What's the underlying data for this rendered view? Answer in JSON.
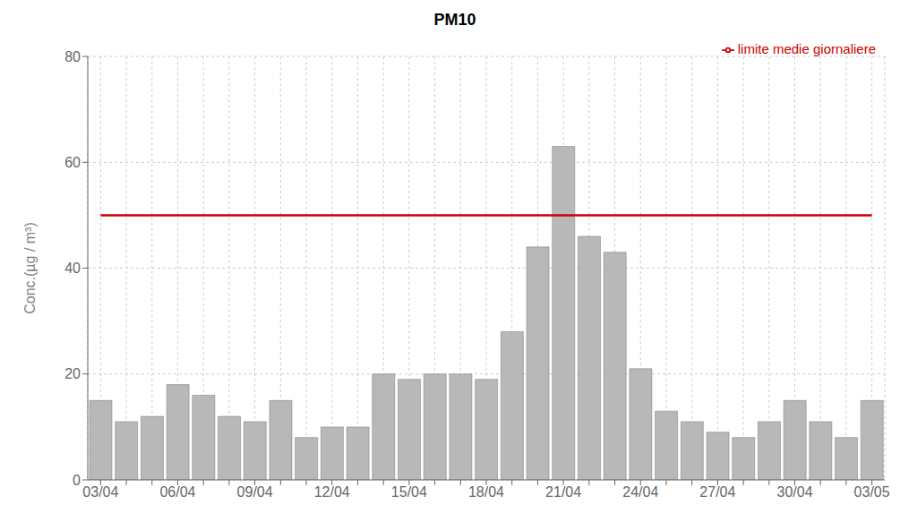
{
  "chart_data": {
    "type": "bar",
    "title": "PM10",
    "ylabel": "Conc.(µg / m³)",
    "categories": [
      "03/04",
      null,
      null,
      "06/04",
      null,
      null,
      "09/04",
      null,
      null,
      "12/04",
      null,
      null,
      "15/04",
      null,
      null,
      "18/04",
      null,
      null,
      "21/04",
      null,
      null,
      "24/04",
      null,
      null,
      "27/04",
      null,
      null,
      "30/04",
      null,
      null,
      "03/05"
    ],
    "series": [
      {
        "type": "bar",
        "color": "#b8b8b8",
        "values": [
          15,
          11,
          12,
          18,
          16,
          12,
          11,
          15,
          8,
          10,
          10,
          20,
          19,
          20,
          20,
          19,
          28,
          44,
          63,
          46,
          43,
          21,
          13,
          11,
          9,
          8,
          11,
          15,
          11,
          8,
          15
        ]
      },
      {
        "type": "line",
        "name": "limite medie giornaliere",
        "color": "#cc0000",
        "values": [
          50,
          50,
          50,
          50,
          50,
          50,
          50,
          50,
          50,
          50,
          50,
          50,
          50,
          50,
          50,
          50,
          50,
          50,
          50,
          50,
          50,
          50,
          50,
          50,
          50,
          50,
          50,
          50,
          50,
          50,
          50
        ]
      }
    ],
    "ylim": [
      0,
      80
    ],
    "yticks": [
      0,
      20,
      40,
      60,
      80
    ],
    "grid": true,
    "legend": "upper right"
  }
}
